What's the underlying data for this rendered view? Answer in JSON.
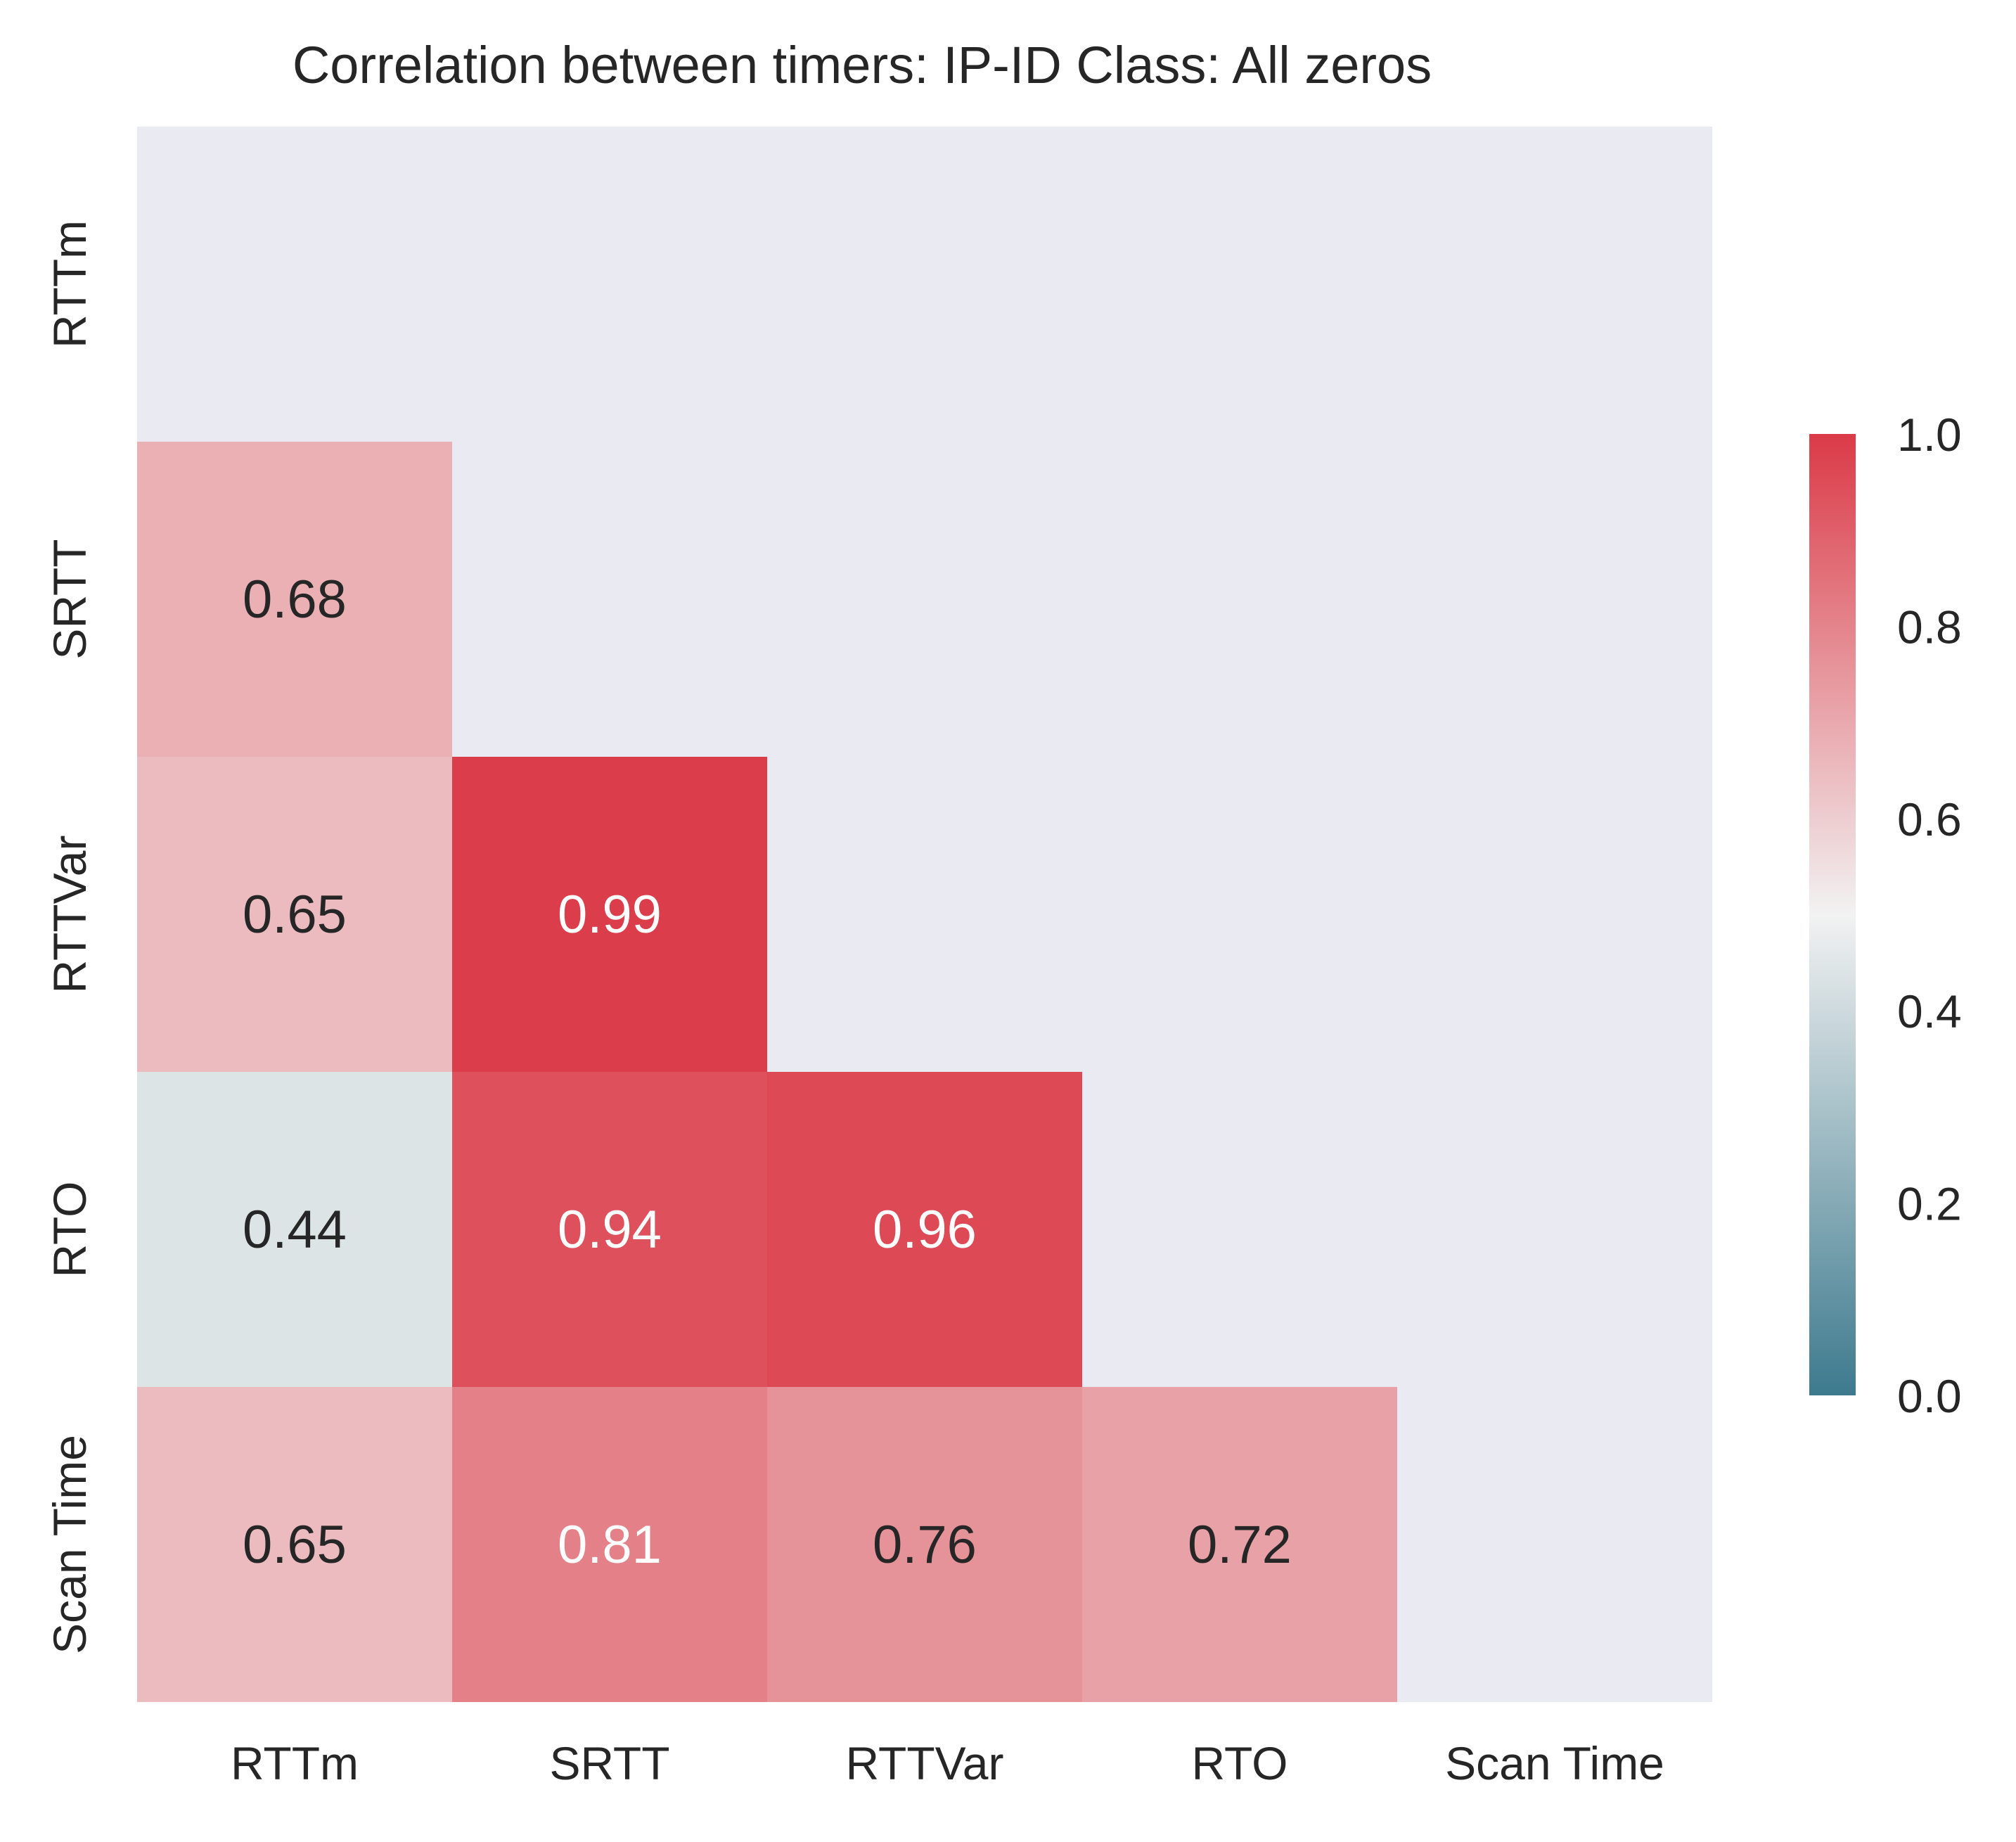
{
  "chart_data": {
    "type": "heatmap",
    "title": "Correlation between timers: IP-ID Class: All zeros",
    "xlabel": "",
    "ylabel": "",
    "x_categories": [
      "RTTm",
      "SRTT",
      "RTTVar",
      "RTO",
      "Scan Time"
    ],
    "y_categories": [
      "RTTm",
      "SRTT",
      "RTTVar",
      "RTO",
      "Scan Time"
    ],
    "mask": "upper triangle including diagonal",
    "values": [
      [
        null,
        null,
        null,
        null,
        null
      ],
      [
        0.68,
        null,
        null,
        null,
        null
      ],
      [
        0.65,
        0.99,
        null,
        null,
        null
      ],
      [
        0.44,
        0.94,
        0.96,
        null,
        null
      ],
      [
        0.65,
        0.81,
        0.76,
        0.72,
        null
      ]
    ],
    "colorbar": {
      "range": [
        0.0,
        1.0
      ],
      "ticks": [
        "0.0",
        "0.2",
        "0.4",
        "0.6",
        "0.8",
        "1.0"
      ],
      "colors": {
        "low": "#3d7a8e",
        "mid": "#f2f2f2",
        "high": "#db3a47"
      }
    },
    "background_color": "#eaeaf2",
    "grid": false
  }
}
